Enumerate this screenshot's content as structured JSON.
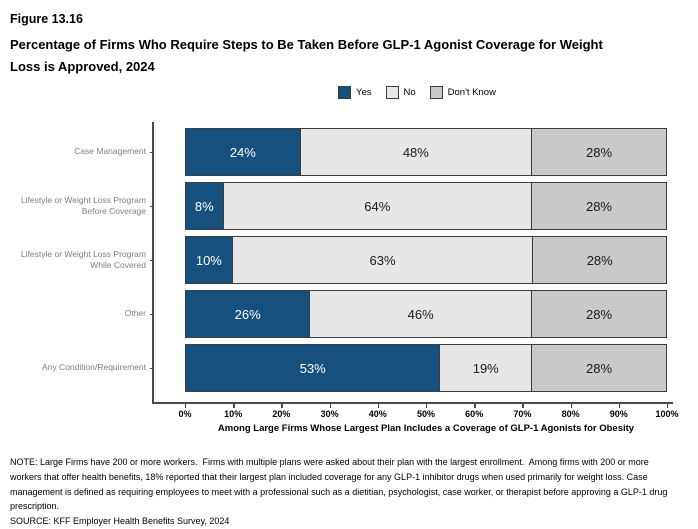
{
  "figure_label": "Figure 13.16",
  "title": "Percentage of Firms Who Require Steps to Be Taken Before GLP-1 Agonist Coverage for Weight Loss is Approved, 2024",
  "legend": [
    {
      "label": "Yes",
      "color": "#15507e"
    },
    {
      "label": "No",
      "color": "#e7e7e7"
    },
    {
      "label": "Don't Know",
      "color": "#c9c9c9"
    }
  ],
  "chart_data": {
    "type": "bar",
    "orientation": "horizontal",
    "stacked": true,
    "grid": false,
    "legend_position": "top",
    "categories": [
      "Case Management",
      "Lifestyle or Weight Loss Program\nBefore Coverage",
      "Lifestyle or Weight Loss Program\nWhile Covered",
      "Other",
      "Any Condition/Requirement"
    ],
    "series": [
      {
        "name": "Yes",
        "color": "#15507e",
        "label_color": "#ffffff",
        "values": [
          24,
          8,
          10,
          26,
          53
        ]
      },
      {
        "name": "No",
        "color": "#e7e7e7",
        "label_color": "#1a1a1a",
        "values": [
          48,
          64,
          63,
          46,
          19
        ]
      },
      {
        "name": "Don't Know",
        "color": "#c9c9c9",
        "label_color": "#1a1a1a",
        "values": [
          28,
          28,
          28,
          28,
          28
        ]
      }
    ],
    "value_suffix": "%",
    "xlim": [
      0,
      100
    ],
    "x_ticks": [
      "0%",
      "10%",
      "20%",
      "30%",
      "40%",
      "50%",
      "60%",
      "70%",
      "80%",
      "90%",
      "100%"
    ],
    "xlabel": "Among Large Firms Whose Largest Plan Includes a Coverage of GLP-1 Agonists for Obesity"
  },
  "note": "NOTE: Large Firms have 200 or more workers.  Firms with multiple plans were asked about their plan with the largest enrollment.  Among firms with 200 or more workers that offer health benefits, 18% reported that their largest plan included coverage for any GLP-1 inhibitor drugs when used primarily for weight loss. Case management is defined as requiring employees to meet with a professional such as a dietitian, psychologist, case worker, or therapist before approving a GLP-1 drug prescription.",
  "source": "SOURCE: KFF Employer Health Benefits Survey, 2024"
}
